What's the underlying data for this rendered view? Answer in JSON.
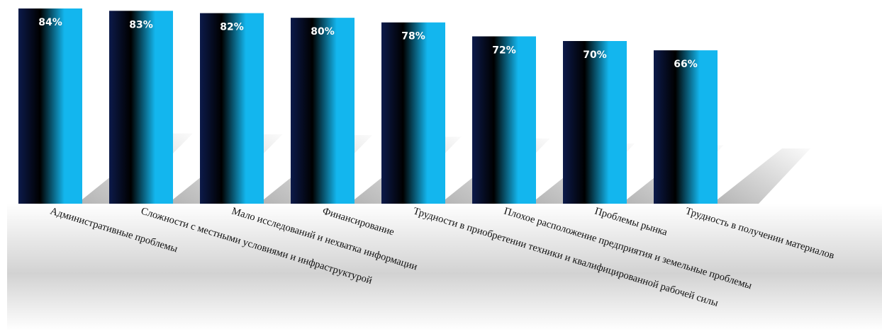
{
  "chart_data": {
    "type": "bar",
    "categories": [
      "Административные проблемы",
      "Сложности с местными условиями и инфраструктурой",
      "Мало исследований и нехватка информации",
      "Финансирование",
      "Трудности в приобретении техники и квалифицированной рабочей силы",
      "Плохое расположение предприятия и земельные проблемы",
      "Проблемы рынка",
      "Трудность в получении материалов"
    ],
    "values": [
      84,
      83,
      82,
      80,
      78,
      72,
      70,
      66
    ],
    "data_labels": [
      "84%",
      "83%",
      "82%",
      "80%",
      "78%",
      "72%",
      "70%",
      "66%"
    ],
    "unit": "%",
    "title": "",
    "xlabel": "",
    "ylabel": "",
    "ylim": [
      0,
      84
    ],
    "grid": false,
    "legend": "none",
    "colors": {
      "bar_dark": "#000000",
      "bar_navy": "#0c1a4a",
      "bar_light": "#13b6ee",
      "floor_shade": "#d2d2d2",
      "shadow": "#a8a8a8"
    }
  }
}
